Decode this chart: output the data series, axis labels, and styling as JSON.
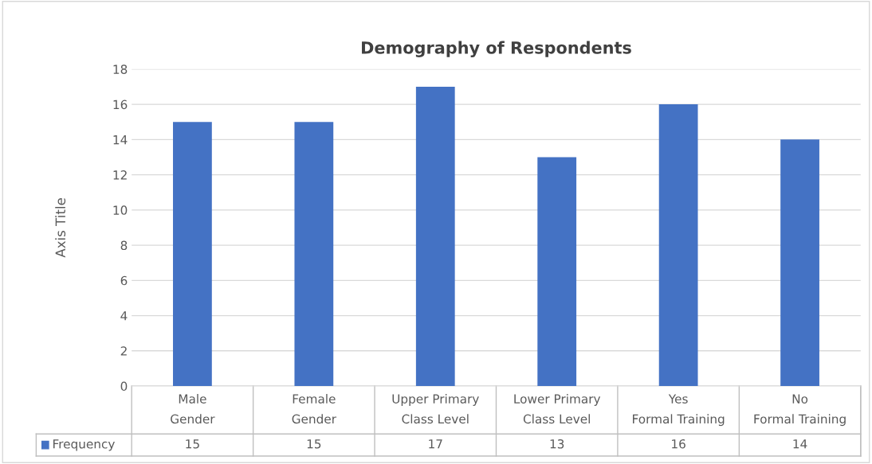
{
  "chart_data": {
    "type": "bar",
    "title": "Demography of Respondents",
    "ylabel": "Axis Title",
    "categories": [
      "Male\nGender",
      "Female\nGender",
      "Upper Primary\nClass Level",
      "Lower Primary\nClass Level",
      "Yes\nFormal Training",
      "No\nFormal Training"
    ],
    "series": [
      {
        "name": "Frequency",
        "color": "#4472c4",
        "values": [
          15,
          15,
          17,
          13,
          16,
          14
        ]
      }
    ],
    "ylim": [
      0,
      18
    ],
    "yticks": [
      0,
      2,
      4,
      6,
      8,
      10,
      12,
      14,
      16,
      18
    ],
    "grid": "y",
    "legend": "bottom",
    "data_labels": true
  }
}
